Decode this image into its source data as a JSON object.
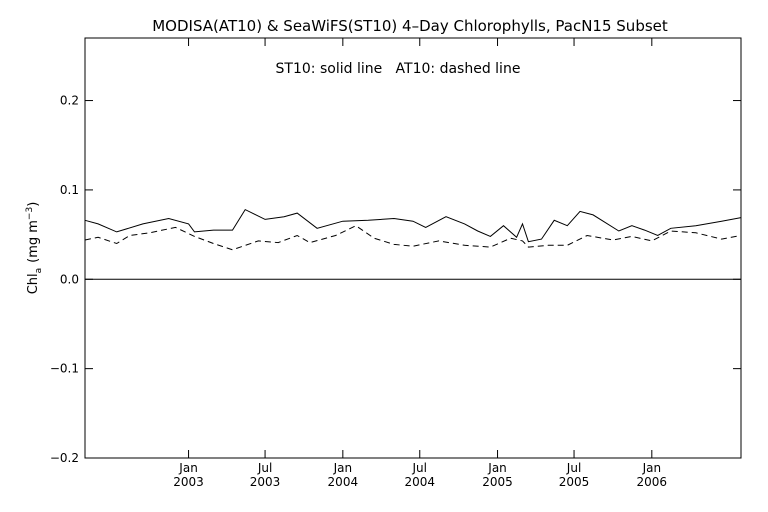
{
  "chart_data": {
    "type": "line",
    "title": "MODISA(AT10) & SeaWiFS(ST10) 4–Day Chlorophylls, PacN15 Subset",
    "annotation": "ST10: solid line   AT10: dashed line",
    "ylabel_main": "Chl",
    "ylabel_sub": "a",
    "ylabel_unit": "(mg m",
    "ylabel_exp": "−3",
    "ylabel_close": ")",
    "ylim": [
      -0.2,
      0.27
    ],
    "yticks": [
      {
        "value": -0.2,
        "label": "−0.2"
      },
      {
        "value": -0.1,
        "label": "−0.1"
      },
      {
        "value": 0.0,
        "label": "0.0"
      },
      {
        "value": 0.1,
        "label": "0.1"
      },
      {
        "value": 0.2,
        "label": "0.2"
      }
    ],
    "xlim": [
      "2002-05-01",
      "2006-07-31"
    ],
    "xticks": [
      {
        "date": "2003-01-01",
        "month": "Jan",
        "year": "2003"
      },
      {
        "date": "2003-07-01",
        "month": "Jul",
        "year": "2003"
      },
      {
        "date": "2004-01-01",
        "month": "Jan",
        "year": "2004"
      },
      {
        "date": "2004-07-01",
        "month": "Jul",
        "year": "2004"
      },
      {
        "date": "2005-01-01",
        "month": "Jan",
        "year": "2005"
      },
      {
        "date": "2005-07-01",
        "month": "Jul",
        "year": "2005"
      },
      {
        "date": "2006-01-01",
        "month": "Jan",
        "year": "2006"
      }
    ],
    "reference_line_y": 0.0,
    "series": [
      {
        "name": "ST10",
        "style": "solid",
        "points": [
          [
            "2002-05-01",
            0.066
          ],
          [
            "2002-06-01",
            0.062
          ],
          [
            "2002-07-15",
            0.053
          ],
          [
            "2002-09-15",
            0.062
          ],
          [
            "2002-11-15",
            0.068
          ],
          [
            "2003-01-01",
            0.062
          ],
          [
            "2003-01-15",
            0.053
          ],
          [
            "2003-03-01",
            0.055
          ],
          [
            "2003-04-15",
            0.055
          ],
          [
            "2003-05-15",
            0.078
          ],
          [
            "2003-07-01",
            0.067
          ],
          [
            "2003-08-15",
            0.07
          ],
          [
            "2003-09-15",
            0.074
          ],
          [
            "2003-11-01",
            0.057
          ],
          [
            "2004-01-01",
            0.065
          ],
          [
            "2004-03-01",
            0.066
          ],
          [
            "2004-05-01",
            0.068
          ],
          [
            "2004-06-15",
            0.065
          ],
          [
            "2004-07-15",
            0.058
          ],
          [
            "2004-09-01",
            0.07
          ],
          [
            "2004-10-15",
            0.062
          ],
          [
            "2004-11-15",
            0.054
          ],
          [
            "2004-12-15",
            0.048
          ],
          [
            "2005-01-15",
            0.06
          ],
          [
            "2005-02-15",
            0.047
          ],
          [
            "2005-03-01",
            0.062
          ],
          [
            "2005-03-15",
            0.042
          ],
          [
            "2005-04-15",
            0.045
          ],
          [
            "2005-05-15",
            0.066
          ],
          [
            "2005-06-15",
            0.06
          ],
          [
            "2005-07-15",
            0.076
          ],
          [
            "2005-08-15",
            0.072
          ],
          [
            "2005-10-15",
            0.054
          ],
          [
            "2005-11-15",
            0.06
          ],
          [
            "2005-12-15",
            0.055
          ],
          [
            "2006-01-15",
            0.049
          ],
          [
            "2006-02-15",
            0.057
          ],
          [
            "2006-04-15",
            0.06
          ],
          [
            "2006-06-15",
            0.065
          ],
          [
            "2006-07-31",
            0.069
          ]
        ]
      },
      {
        "name": "AT10",
        "style": "dashed",
        "points": [
          [
            "2002-05-01",
            0.044
          ],
          [
            "2002-06-01",
            0.047
          ],
          [
            "2002-07-15",
            0.04
          ],
          [
            "2002-08-15",
            0.049
          ],
          [
            "2002-10-01",
            0.052
          ],
          [
            "2002-12-01",
            0.058
          ],
          [
            "2003-01-15",
            0.048
          ],
          [
            "2003-03-01",
            0.04
          ],
          [
            "2003-04-15",
            0.033
          ],
          [
            "2003-06-15",
            0.043
          ],
          [
            "2003-08-01",
            0.041
          ],
          [
            "2003-09-15",
            0.049
          ],
          [
            "2003-10-15",
            0.041
          ],
          [
            "2003-12-15",
            0.049
          ],
          [
            "2004-02-01",
            0.06
          ],
          [
            "2004-03-15",
            0.046
          ],
          [
            "2004-05-01",
            0.039
          ],
          [
            "2004-06-15",
            0.037
          ],
          [
            "2004-08-15",
            0.043
          ],
          [
            "2004-10-15",
            0.038
          ],
          [
            "2004-12-15",
            0.036
          ],
          [
            "2005-02-01",
            0.046
          ],
          [
            "2005-03-01",
            0.043
          ],
          [
            "2005-03-15",
            0.036
          ],
          [
            "2005-05-01",
            0.038
          ],
          [
            "2005-06-15",
            0.038
          ],
          [
            "2005-08-01",
            0.049
          ],
          [
            "2005-10-01",
            0.044
          ],
          [
            "2005-11-15",
            0.048
          ],
          [
            "2006-01-01",
            0.043
          ],
          [
            "2006-02-15",
            0.054
          ],
          [
            "2006-04-15",
            0.052
          ],
          [
            "2006-06-15",
            0.045
          ],
          [
            "2006-07-31",
            0.049
          ]
        ]
      }
    ]
  }
}
